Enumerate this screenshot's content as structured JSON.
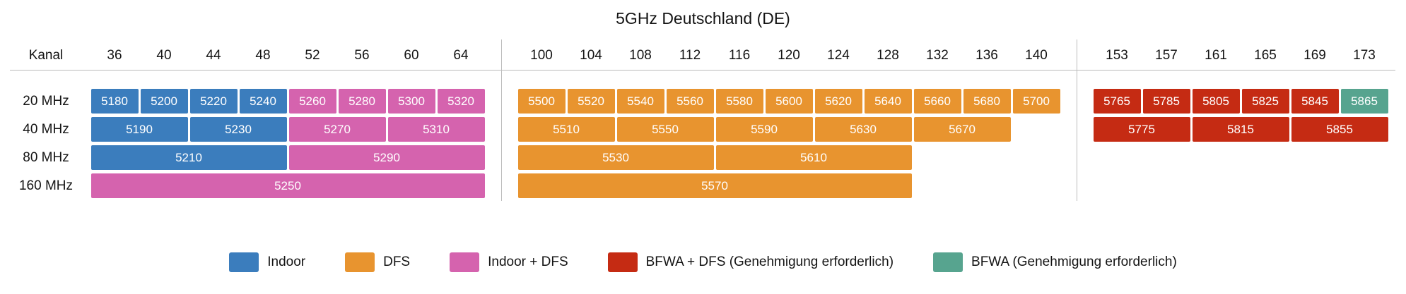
{
  "title": "5GHz Deutschland (DE)",
  "chart_data": {
    "type": "bar",
    "title": "5GHz Deutschland (DE)",
    "channel_axis_label": "Kanal",
    "channel_groups": [
      {
        "channels": [
          "36",
          "40",
          "44",
          "48",
          "52",
          "56",
          "60",
          "64"
        ]
      },
      {
        "channels": [
          "100",
          "104",
          "108",
          "112",
          "116",
          "120",
          "124",
          "128",
          "132",
          "136",
          "140"
        ]
      },
      {
        "channels": [
          "153",
          "157",
          "161",
          "165",
          "169",
          "173"
        ]
      }
    ],
    "rows": [
      {
        "label": "20 MHz",
        "bars": [
          {
            "group": 0,
            "start": 0,
            "span": 1,
            "freq": "5180",
            "type": "indoor"
          },
          {
            "group": 0,
            "start": 1,
            "span": 1,
            "freq": "5200",
            "type": "indoor"
          },
          {
            "group": 0,
            "start": 2,
            "span": 1,
            "freq": "5220",
            "type": "indoor"
          },
          {
            "group": 0,
            "start": 3,
            "span": 1,
            "freq": "5240",
            "type": "indoor"
          },
          {
            "group": 0,
            "start": 4,
            "span": 1,
            "freq": "5260",
            "type": "indoor_dfs"
          },
          {
            "group": 0,
            "start": 5,
            "span": 1,
            "freq": "5280",
            "type": "indoor_dfs"
          },
          {
            "group": 0,
            "start": 6,
            "span": 1,
            "freq": "5300",
            "type": "indoor_dfs"
          },
          {
            "group": 0,
            "start": 7,
            "span": 1,
            "freq": "5320",
            "type": "indoor_dfs"
          },
          {
            "group": 1,
            "start": 0,
            "span": 1,
            "freq": "5500",
            "type": "dfs"
          },
          {
            "group": 1,
            "start": 1,
            "span": 1,
            "freq": "5520",
            "type": "dfs"
          },
          {
            "group": 1,
            "start": 2,
            "span": 1,
            "freq": "5540",
            "type": "dfs"
          },
          {
            "group": 1,
            "start": 3,
            "span": 1,
            "freq": "5560",
            "type": "dfs"
          },
          {
            "group": 1,
            "start": 4,
            "span": 1,
            "freq": "5580",
            "type": "dfs"
          },
          {
            "group": 1,
            "start": 5,
            "span": 1,
            "freq": "5600",
            "type": "dfs"
          },
          {
            "group": 1,
            "start": 6,
            "span": 1,
            "freq": "5620",
            "type": "dfs"
          },
          {
            "group": 1,
            "start": 7,
            "span": 1,
            "freq": "5640",
            "type": "dfs"
          },
          {
            "group": 1,
            "start": 8,
            "span": 1,
            "freq": "5660",
            "type": "dfs"
          },
          {
            "group": 1,
            "start": 9,
            "span": 1,
            "freq": "5680",
            "type": "dfs"
          },
          {
            "group": 1,
            "start": 10,
            "span": 1,
            "freq": "5700",
            "type": "dfs"
          },
          {
            "group": 2,
            "start": 0,
            "span": 1,
            "freq": "5765",
            "type": "bfwa_dfs"
          },
          {
            "group": 2,
            "start": 1,
            "span": 1,
            "freq": "5785",
            "type": "bfwa_dfs"
          },
          {
            "group": 2,
            "start": 2,
            "span": 1,
            "freq": "5805",
            "type": "bfwa_dfs"
          },
          {
            "group": 2,
            "start": 3,
            "span": 1,
            "freq": "5825",
            "type": "bfwa_dfs"
          },
          {
            "group": 2,
            "start": 4,
            "span": 1,
            "freq": "5845",
            "type": "bfwa_dfs"
          },
          {
            "group": 2,
            "start": 5,
            "span": 1,
            "freq": "5865",
            "type": "bfwa"
          }
        ]
      },
      {
        "label": "40 MHz",
        "bars": [
          {
            "group": 0,
            "start": 0,
            "span": 2,
            "freq": "5190",
            "type": "indoor"
          },
          {
            "group": 0,
            "start": 2,
            "span": 2,
            "freq": "5230",
            "type": "indoor"
          },
          {
            "group": 0,
            "start": 4,
            "span": 2,
            "freq": "5270",
            "type": "indoor_dfs"
          },
          {
            "group": 0,
            "start": 6,
            "span": 2,
            "freq": "5310",
            "type": "indoor_dfs"
          },
          {
            "group": 1,
            "start": 0,
            "span": 2,
            "freq": "5510",
            "type": "dfs"
          },
          {
            "group": 1,
            "start": 2,
            "span": 2,
            "freq": "5550",
            "type": "dfs"
          },
          {
            "group": 1,
            "start": 4,
            "span": 2,
            "freq": "5590",
            "type": "dfs"
          },
          {
            "group": 1,
            "start": 6,
            "span": 2,
            "freq": "5630",
            "type": "dfs"
          },
          {
            "group": 1,
            "start": 8,
            "span": 2,
            "freq": "5670",
            "type": "dfs"
          },
          {
            "group": 2,
            "start": 0,
            "span": 2,
            "freq": "5775",
            "type": "bfwa_dfs"
          },
          {
            "group": 2,
            "start": 2,
            "span": 2,
            "freq": "5815",
            "type": "bfwa_dfs"
          },
          {
            "group": 2,
            "start": 4,
            "span": 2,
            "freq": "5855",
            "type": "bfwa_dfs"
          }
        ]
      },
      {
        "label": "80 MHz",
        "bars": [
          {
            "group": 0,
            "start": 0,
            "span": 4,
            "freq": "5210",
            "type": "indoor"
          },
          {
            "group": 0,
            "start": 4,
            "span": 4,
            "freq": "5290",
            "type": "indoor_dfs"
          },
          {
            "group": 1,
            "start": 0,
            "span": 4,
            "freq": "5530",
            "type": "dfs"
          },
          {
            "group": 1,
            "start": 4,
            "span": 4,
            "freq": "5610",
            "type": "dfs"
          }
        ]
      },
      {
        "label": "160 MHz",
        "bars": [
          {
            "group": 0,
            "start": 0,
            "span": 8,
            "freq": "5250",
            "type": "indoor_dfs"
          },
          {
            "group": 1,
            "start": 0,
            "span": 8,
            "freq": "5570",
            "type": "dfs"
          }
        ]
      }
    ],
    "legend": [
      {
        "label": "Indoor",
        "type": "indoor"
      },
      {
        "label": "DFS",
        "type": "dfs"
      },
      {
        "label": "Indoor + DFS",
        "type": "indoor_dfs"
      },
      {
        "label": "BFWA + DFS (Genehmigung erforderlich)",
        "type": "bfwa_dfs"
      },
      {
        "label": "BFWA (Genehmigung erforderlich)",
        "type": "bfwa"
      }
    ],
    "colors": {
      "indoor": "#3b7dbd",
      "dfs": "#e8942f",
      "indoor_dfs": "#d563ae",
      "bfwa_dfs": "#c52b13",
      "bfwa": "#57a48f"
    },
    "layout_hints": {
      "grid": false,
      "legend_position": "bottom"
    }
  }
}
